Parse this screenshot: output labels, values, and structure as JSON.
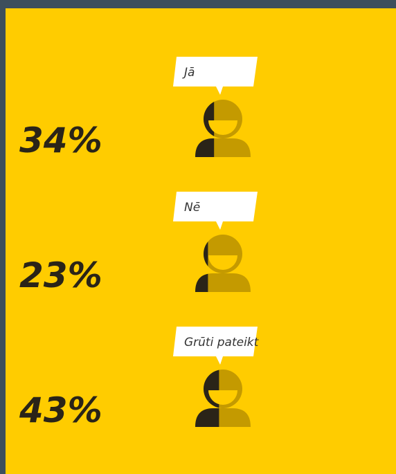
{
  "chart_data": {
    "type": "pictogram",
    "categories": [
      "Jā",
      "Nē",
      "Grūti pateikt"
    ],
    "values": [
      34,
      23,
      43
    ],
    "value_labels": [
      "34%",
      "23%",
      "43%"
    ],
    "color": "#2a2418",
    "rest_color": "#c49a00"
  }
}
